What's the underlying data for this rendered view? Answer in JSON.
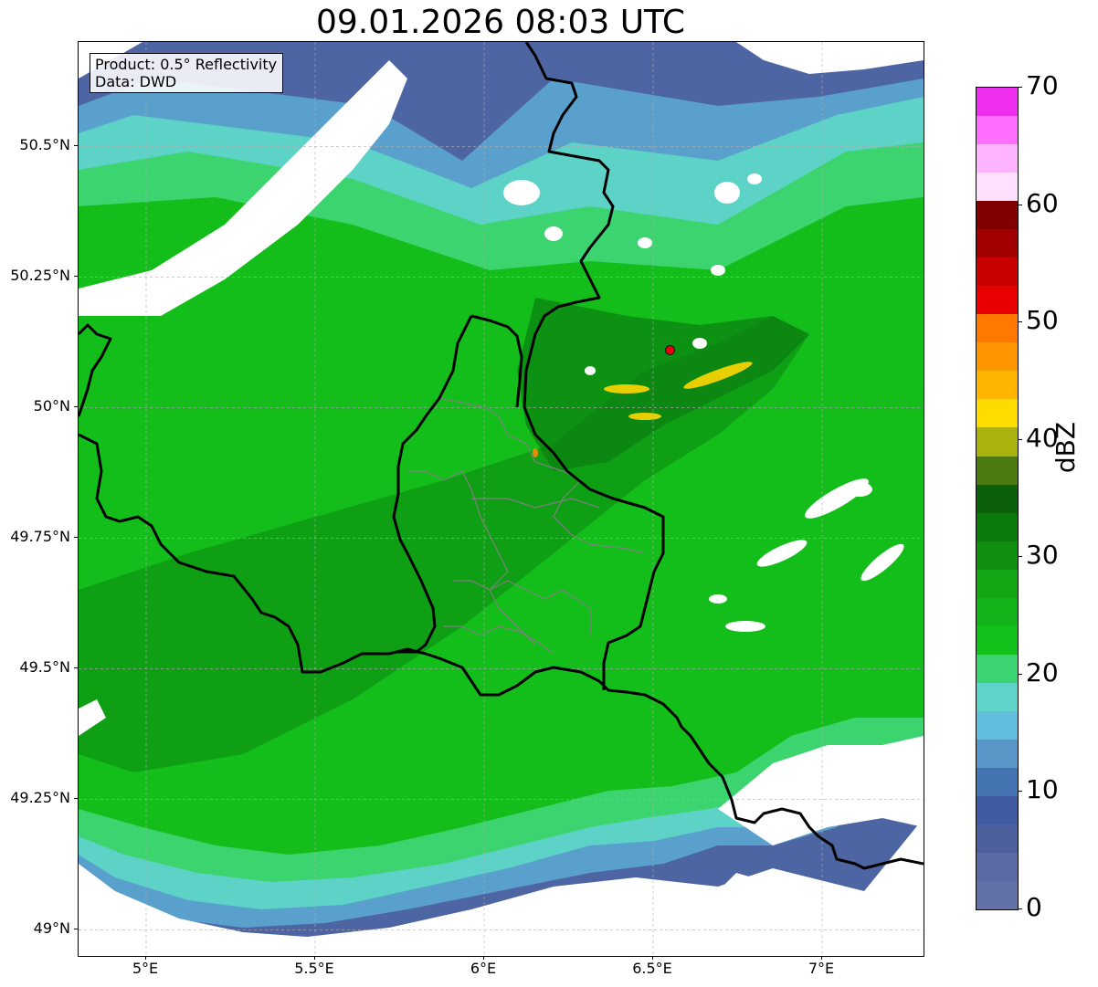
{
  "title": "09.01.2026 08:03 UTC",
  "info": {
    "product": "Product: 0.5° Reflectivity",
    "data": "Data: DWD"
  },
  "axes": {
    "lon_ticks": [
      "5°E",
      "5.5°E",
      "6°E",
      "6.5°E",
      "7°E"
    ],
    "lat_ticks": [
      "50.5°N",
      "50.25°N",
      "50°N",
      "49.75°N",
      "49.5°N",
      "49.25°N",
      "49°N"
    ],
    "lon_values": [
      5.0,
      5.5,
      6.0,
      6.5,
      7.0
    ],
    "lat_values": [
      50.5,
      50.25,
      50.0,
      49.75,
      49.5,
      49.25,
      49.0
    ],
    "lon_range": [
      4.8,
      7.3
    ],
    "lat_range": [
      48.95,
      50.7
    ]
  },
  "radar_site": {
    "name": "radar-site",
    "lon": 6.55,
    "lat": 50.11,
    "color": "#e8000b"
  },
  "colorbar": {
    "unit": "dBZ",
    "labels": [
      "0",
      "10",
      "20",
      "30",
      "40",
      "50",
      "60",
      "70"
    ],
    "colors": [
      "#6271a8",
      "#5b6aa4",
      "#4e5f9e",
      "#3f5aa0",
      "#4574b2",
      "#5a96c8",
      "#62bedc",
      "#5ed3c8",
      "#3bd470",
      "#12c21a",
      "#12b41a",
      "#14a614",
      "#0f8e0f",
      "#0d7a0d",
      "#0c600c",
      "#4a7a10",
      "#aab210",
      "#ffdc00",
      "#ffb400",
      "#ff9600",
      "#ff7800",
      "#e80000",
      "#c80000",
      "#a00000",
      "#800000",
      "#ffe1ff",
      "#ffb4ff",
      "#ff6eff",
      "#ee30ee"
    ]
  },
  "palette": {
    "no_echo": "#ffffff",
    "low": "#4e65a4",
    "light_blue": "#6bbcd8",
    "cyan": "#5cd3c6",
    "light_green": "#3bd46e",
    "green": "#13be1a",
    "dark_green": "#0f8e12",
    "yellow": "#ffd700",
    "border": "#000000",
    "district": "#808080",
    "grid": "#b0b0b0"
  }
}
